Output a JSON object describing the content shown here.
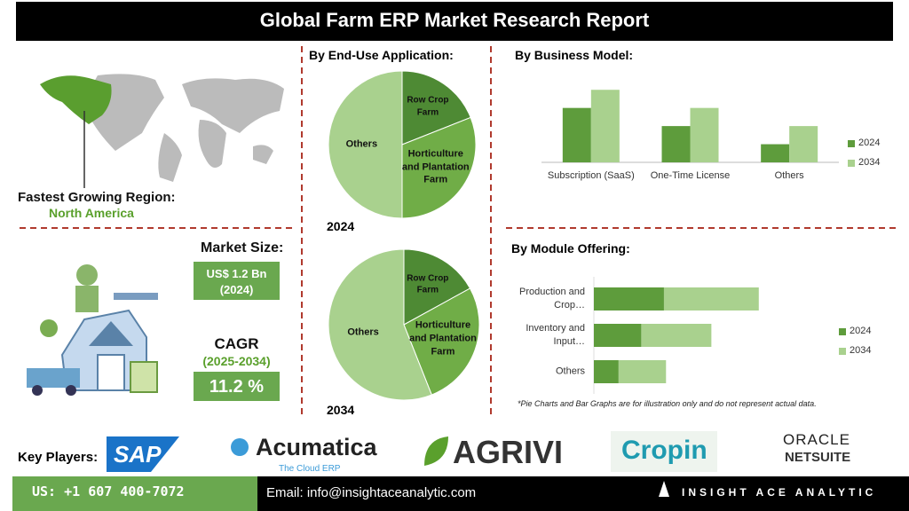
{
  "header": {
    "title": "Global Farm ERP Market Research Report"
  },
  "region": {
    "label": "Fastest Growing Region:",
    "value": "North America"
  },
  "market": {
    "size_label": "Market Size:",
    "size_value": "US$ 1.2 Bn",
    "size_year": "(2024)",
    "cagr_label": "CAGR",
    "cagr_period": "(2025-2034)",
    "cagr_value": "11.2 %"
  },
  "chart_data": [
    {
      "type": "pie",
      "title": "By End-Use Application:",
      "subtitle": "2024",
      "categories": [
        "Row Crop Farm",
        "Horticulture and Plantation Farm",
        "Others"
      ],
      "values": [
        19,
        31,
        50
      ],
      "colors": [
        "#4e8a34",
        "#70ad47",
        "#a9d18e"
      ]
    },
    {
      "type": "pie",
      "subtitle": "2034",
      "categories": [
        "Row Crop Farm",
        "Horticulture and Plantation Farm",
        "Others"
      ],
      "values": [
        17,
        27,
        56
      ],
      "colors": [
        "#4e8a34",
        "#70ad47",
        "#a9d18e"
      ]
    },
    {
      "type": "bar",
      "title": "By Business Model:",
      "categories": [
        "Subscription (SaaS)",
        "One-Time License",
        "Others"
      ],
      "series": [
        {
          "name": "2024",
          "color": "#5e9c3c",
          "values": [
            6,
            4,
            2
          ]
        },
        {
          "name": "2034",
          "color": "#a9d18e",
          "values": [
            8,
            6,
            4
          ]
        }
      ],
      "ylim": [
        0,
        9
      ]
    },
    {
      "type": "stacked_hbar",
      "title": "By Module Offering:",
      "categories": [
        "Production and Crop…",
        "Inventory and Input…",
        "Others"
      ],
      "series": [
        {
          "name": "2024",
          "color": "#5e9c3c",
          "values": [
            3.4,
            2.3,
            1.2
          ]
        },
        {
          "name": "2034",
          "color": "#a9d18e",
          "values": [
            4.6,
            3.4,
            2.3
          ]
        }
      ],
      "xlim": [
        0,
        9
      ]
    }
  ],
  "note": "*Pie Charts and Bar Graphs are for illustration only and do not represent actual data.",
  "key_players": {
    "label": "Key Players:",
    "logos": [
      "SAP",
      "Acumatica",
      "The Cloud ERP",
      "AGRIVI",
      "Cropin",
      "ORACLE",
      "NETSUITE"
    ]
  },
  "footer": {
    "phone": "US: +1 607 400-7072",
    "email": "Email: info@insightaceanalytic.com",
    "brand": "INSIGHT ACE ANALYTIC"
  }
}
